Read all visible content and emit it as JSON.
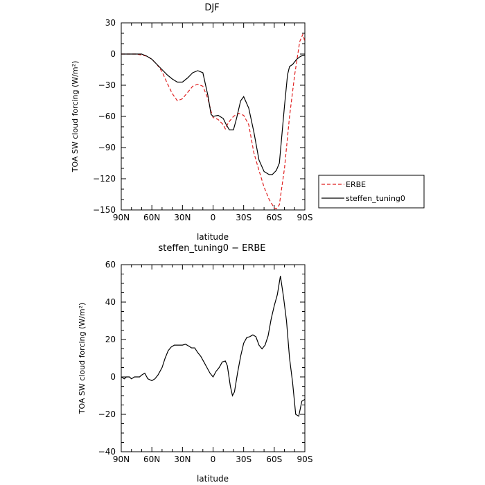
{
  "chart_data": [
    {
      "type": "line",
      "title": "DJF",
      "xlabel": "latitude",
      "ylabel": "TOA SW cloud forcing (W/m²)",
      "xlim": [
        90,
        -90
      ],
      "ylim": [
        -150,
        30
      ],
      "x_ticks": [
        90,
        60,
        30,
        0,
        -30,
        -60,
        -90
      ],
      "x_tick_labels": [
        "90N",
        "60N",
        "30N",
        "0",
        "30S",
        "60S",
        "90S"
      ],
      "y_ticks": [
        30,
        0,
        -30,
        -60,
        -90,
        -120,
        -150
      ],
      "y_tick_labels": [
        "30",
        "0",
        "−30",
        "−60",
        "−90",
        "−120",
        "−150"
      ],
      "legend": {
        "placement": "right",
        "entries": [
          "ERBE",
          "steffen_tuning0"
        ]
      },
      "grid": false,
      "series": [
        {
          "name": "ERBE",
          "color": "#e02020",
          "dash": "dashed",
          "x": [
            90,
            80,
            75,
            70,
            65,
            60,
            55,
            50,
            45,
            40,
            35,
            30,
            25,
            20,
            15,
            10,
            5,
            2,
            0,
            -5,
            -10,
            -12,
            -15,
            -20,
            -25,
            -30,
            -35,
            -40,
            -45,
            -50,
            -55,
            -60,
            -62,
            -65,
            -70,
            -75,
            -80,
            -85,
            -88,
            -90
          ],
          "y": [
            0,
            0,
            0,
            -1,
            -2,
            -5,
            -10,
            -17,
            -28,
            -38,
            -45,
            -43,
            -37,
            -31,
            -29,
            -31,
            -43,
            -55,
            -61,
            -63,
            -68,
            -72,
            -66,
            -60,
            -57,
            -59,
            -68,
            -95,
            -112,
            -128,
            -140,
            -148,
            -149,
            -145,
            -110,
            -60,
            -20,
            12,
            19,
            12
          ]
        },
        {
          "name": "steffen_tuning0",
          "color": "#000000",
          "dash": "solid",
          "x": [
            90,
            85,
            80,
            75,
            70,
            65,
            60,
            55,
            50,
            45,
            40,
            35,
            30,
            25,
            20,
            15,
            10,
            5,
            2,
            0,
            -5,
            -10,
            -13,
            -16,
            -20,
            -23,
            -27,
            -30,
            -35,
            -40,
            -45,
            -50,
            -55,
            -58,
            -62,
            -65,
            -70,
            -73,
            -75,
            -78,
            -82,
            -86,
            -90
          ],
          "y": [
            0,
            0,
            0,
            0,
            0,
            -2,
            -5,
            -10,
            -15,
            -20,
            -24,
            -27,
            -27,
            -23,
            -18,
            -16,
            -18,
            -40,
            -58,
            -60,
            -59,
            -62,
            -68,
            -73,
            -73,
            -62,
            -45,
            -41,
            -52,
            -75,
            -102,
            -113,
            -116,
            -116,
            -112,
            -105,
            -50,
            -20,
            -12,
            -10,
            -5,
            -2,
            -1
          ]
        }
      ]
    },
    {
      "type": "line",
      "title": "steffen_tuning0 − ERBE",
      "xlabel": "latitude",
      "ylabel": "TOA SW cloud forcing (W/m²)",
      "xlim": [
        90,
        -90
      ],
      "ylim": [
        -40,
        60
      ],
      "x_ticks": [
        90,
        60,
        30,
        0,
        -30,
        -60,
        -90
      ],
      "x_tick_labels": [
        "90N",
        "60N",
        "30N",
        "0",
        "30S",
        "60S",
        "90S"
      ],
      "y_ticks": [
        60,
        40,
        20,
        0,
        -20,
        -40
      ],
      "y_tick_labels": [
        "60",
        "40",
        "20",
        "0",
        "−20",
        "−40"
      ],
      "grid": false,
      "series": [
        {
          "color": "#000000",
          "x": [
            90,
            87,
            85,
            82,
            80,
            77,
            75,
            72,
            70,
            67,
            64,
            60,
            57,
            54,
            50,
            47,
            44,
            41,
            38,
            35,
            30,
            27,
            24,
            21,
            18,
            15,
            12,
            9,
            6,
            3,
            0,
            -3,
            -6,
            -9,
            -12,
            -14,
            -17,
            -19,
            -21,
            -24,
            -27,
            -30,
            -33,
            -36,
            -39,
            -42,
            -45,
            -48,
            -51,
            -54,
            -57,
            -60,
            -63,
            -66,
            -69,
            -72,
            -75,
            -78,
            -81,
            -84,
            -87,
            -90
          ],
          "y": [
            0,
            -1,
            0,
            0,
            -1,
            0,
            0,
            0,
            1,
            2,
            -1,
            -2,
            -1,
            1,
            5,
            10,
            14,
            16,
            17,
            17,
            17,
            17.5,
            16.5,
            15.5,
            15.5,
            13,
            11,
            8,
            5,
            2,
            0,
            3,
            5,
            8,
            8.5,
            6,
            -5,
            -10,
            -8,
            2,
            11,
            18,
            21,
            21.5,
            22.5,
            21.5,
            17,
            15,
            17,
            22,
            31,
            38,
            44,
            54,
            43,
            30,
            10,
            -3,
            -20,
            -21,
            -13,
            -12
          ]
        }
      ]
    }
  ]
}
